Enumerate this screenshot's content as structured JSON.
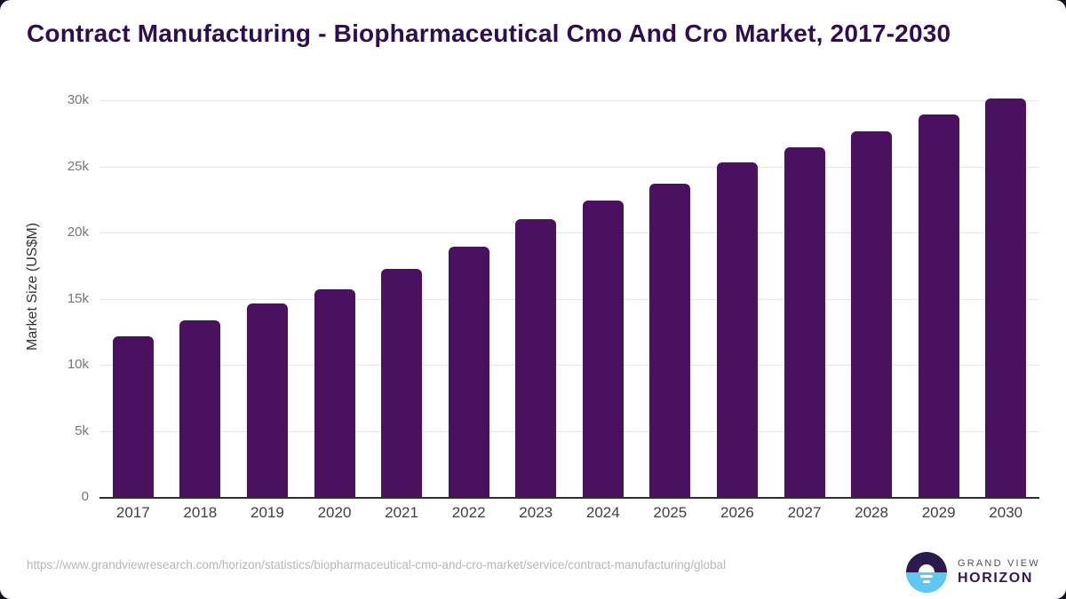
{
  "title": "Contract Manufacturing - Biopharmaceutical Cmo And Cro Market, 2017-2030",
  "chart_data": {
    "type": "bar",
    "title": "Contract Manufacturing - Biopharmaceutical Cmo And Cro Market, 2017-2030",
    "categories": [
      "2017",
      "2018",
      "2019",
      "2020",
      "2021",
      "2022",
      "2023",
      "2024",
      "2025",
      "2026",
      "2027",
      "2028",
      "2029",
      "2030"
    ],
    "values": [
      12150,
      13350,
      14600,
      15700,
      17250,
      18950,
      21000,
      22400,
      23700,
      25300,
      26450,
      27650,
      28900,
      30150
    ],
    "xlabel": "",
    "ylabel": "Market Size (US$M)",
    "ylim": [
      0,
      30000
    ],
    "y_ticks": [
      {
        "value": 0,
        "label": "0"
      },
      {
        "value": 5000,
        "label": "5k"
      },
      {
        "value": 10000,
        "label": "10k"
      },
      {
        "value": 15000,
        "label": "15k"
      },
      {
        "value": 20000,
        "label": "20k"
      },
      {
        "value": 25000,
        "label": "25k"
      },
      {
        "value": 30000,
        "label": "30k"
      }
    ],
    "grid": true,
    "legend": false,
    "bar_color": "#4a1160"
  },
  "colors": {
    "title": "#2f0e50",
    "bar": "#4a1160",
    "gridline": "#e6e6e6",
    "axis_line": "#2f2f33",
    "y_tick": "#757575",
    "x_tick": "#3f3f3f",
    "footer_text": "#b7b7b7",
    "logo_dark": "#2c1a4d",
    "logo_blue": "#5ec8f2"
  },
  "footer": {
    "source_url": "https://www.grandviewresearch.com/horizon/statistics/biopharmaceutical-cmo-and-cro-market/service/contract-manufacturing/global",
    "logo": {
      "line1": "GRAND VIEW",
      "line2": "HORIZON"
    }
  }
}
